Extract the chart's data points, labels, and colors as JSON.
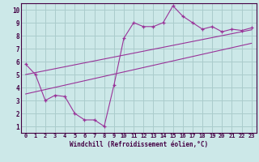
{
  "xlabel": "Windchill (Refroidissement éolien,°C)",
  "bg_color": "#cce8e8",
  "grid_color": "#aacccc",
  "line_color": "#993399",
  "x_data": [
    0,
    1,
    2,
    3,
    4,
    5,
    6,
    7,
    8,
    9,
    10,
    11,
    12,
    13,
    14,
    15,
    16,
    17,
    18,
    19,
    20,
    21,
    22,
    23
  ],
  "y_main": [
    5.8,
    5.0,
    3.0,
    3.4,
    3.3,
    2.0,
    1.5,
    1.5,
    1.0,
    4.2,
    7.8,
    9.0,
    8.7,
    8.7,
    9.0,
    10.3,
    9.5,
    9.0,
    8.5,
    8.7,
    8.3,
    8.5,
    8.4,
    8.6
  ],
  "y_reg1": [
    3.5,
    3.67,
    3.84,
    4.01,
    4.18,
    4.35,
    4.52,
    4.69,
    4.86,
    5.03,
    5.2,
    5.37,
    5.54,
    5.71,
    5.88,
    6.05,
    6.22,
    6.39,
    6.56,
    6.73,
    6.9,
    7.07,
    7.24,
    7.41
  ],
  "y_reg2": [
    5.0,
    5.15,
    5.3,
    5.45,
    5.6,
    5.75,
    5.9,
    6.05,
    6.2,
    6.35,
    6.5,
    6.65,
    6.8,
    6.95,
    7.1,
    7.25,
    7.4,
    7.55,
    7.7,
    7.85,
    8.0,
    8.15,
    8.3,
    8.45
  ],
  "ylim": [
    0.5,
    10.5
  ],
  "xlim": [
    -0.5,
    23.5
  ],
  "yticks": [
    1,
    2,
    3,
    4,
    5,
    6,
    7,
    8,
    9,
    10
  ],
  "xticks": [
    0,
    1,
    2,
    3,
    4,
    5,
    6,
    7,
    8,
    9,
    10,
    11,
    12,
    13,
    14,
    15,
    16,
    17,
    18,
    19,
    20,
    21,
    22,
    23
  ]
}
